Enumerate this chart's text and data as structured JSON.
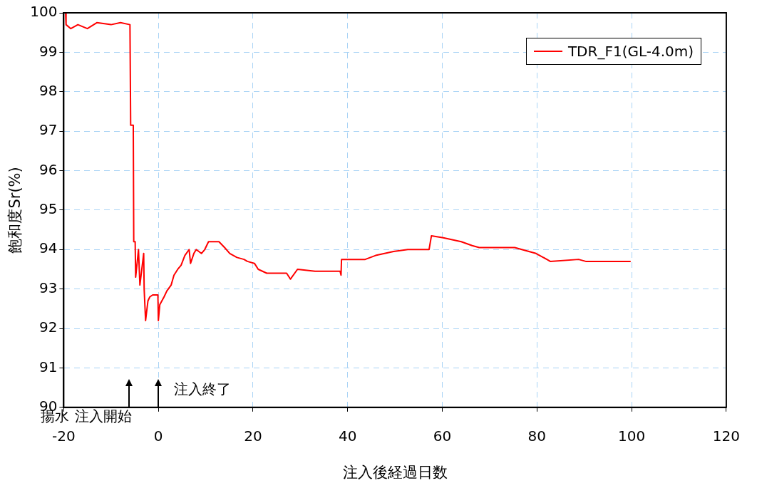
{
  "chart_data": {
    "type": "line",
    "xlabel": "注入後経過日数",
    "ylabel": "飽和度Sr(%)",
    "xlim": [
      -20,
      120
    ],
    "xticks": [
      -20,
      0,
      20,
      40,
      60,
      80,
      100,
      120
    ],
    "ylim": [
      90,
      100
    ],
    "yticks": [
      90,
      91,
      92,
      93,
      94,
      95,
      96,
      97,
      98,
      99,
      100
    ],
    "grid": true,
    "legend": "top right",
    "marker": "none",
    "line_style": "solid",
    "series": [
      {
        "name": "TDR_F1(GL-4.0m)",
        "color": "#ff0000",
        "x": [
          -19.6,
          -19.5,
          -18.5,
          -17,
          -15,
          -13,
          -10,
          -8,
          -6,
          -5.85,
          -5.3,
          -5.2,
          -4.9,
          -4.8,
          -4.2,
          -3.9,
          -3.1,
          -3.0,
          -2.7,
          -2.2,
          -1.8,
          -1.2,
          -0.1,
          0,
          0.3,
          1.2,
          1.8,
          2.7,
          3.3,
          4.1,
          4.8,
          5.6,
          6.5,
          6.8,
          7.5,
          8.0,
          9.1,
          9.8,
          10.6,
          12.8,
          14.0,
          15.1,
          16.6,
          18.1,
          18.8,
          20.3,
          21.1,
          22.9,
          27.1,
          27.9,
          29.4,
          33.1,
          38.4,
          38.6,
          38.7,
          43.7,
          45.9,
          49.7,
          52.7,
          57.2,
          57.7,
          60.2,
          64.0,
          66.3,
          67.8,
          75.3,
          78.3,
          79.8,
          82.1,
          82.8,
          88.8,
          90.3,
          99.8
        ],
        "values": [
          100.0,
          99.7,
          99.6,
          99.7,
          99.6,
          99.75,
          99.7,
          99.75,
          99.7,
          97.15,
          97.15,
          94.2,
          94.2,
          93.3,
          94.0,
          93.1,
          93.9,
          93.0,
          92.2,
          92.7,
          92.8,
          92.85,
          92.85,
          92.2,
          92.6,
          92.8,
          92.95,
          93.1,
          93.35,
          93.5,
          93.6,
          93.85,
          94.0,
          93.65,
          93.9,
          94.0,
          93.9,
          94.0,
          94.2,
          94.2,
          94.05,
          93.9,
          93.8,
          93.75,
          93.7,
          93.65,
          93.5,
          93.4,
          93.4,
          93.25,
          93.5,
          93.45,
          93.45,
          93.35,
          93.75,
          93.75,
          93.85,
          93.95,
          94.0,
          94.0,
          94.35,
          94.3,
          94.2,
          94.1,
          94.05,
          94.05,
          93.95,
          93.9,
          93.75,
          93.7,
          93.75,
          93.7,
          93.7
        ]
      }
    ],
    "annotations": [
      "揚水",
      "注入開始",
      "注入終了"
    ]
  }
}
